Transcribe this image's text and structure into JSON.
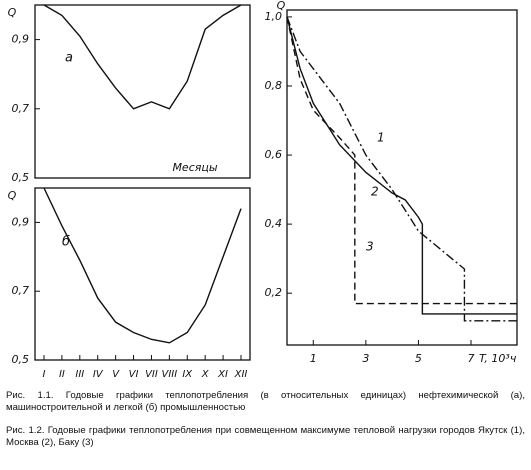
{
  "chart_data": [
    {
      "type": "line",
      "y_label": "Q",
      "panel_label": "а",
      "x_label": "Месяцы",
      "categories": [
        "I",
        "II",
        "III",
        "IV",
        "V",
        "VI",
        "VII",
        "VIII",
        "IX",
        "X",
        "XI",
        "XII"
      ],
      "values": [
        1.0,
        0.97,
        0.91,
        0.83,
        0.76,
        0.7,
        0.72,
        0.7,
        0.78,
        0.93,
        0.97,
        1.0
      ],
      "color": "#111",
      "show_categories": false,
      "ylim": [
        0.5,
        1.0
      ],
      "yticks": [
        {
          "value": 0.5,
          "label": "0,5"
        },
        {
          "value": 0.7,
          "label": "0,7"
        },
        {
          "value": 0.9,
          "label": "0,9"
        }
      ]
    },
    {
      "type": "line",
      "y_label": "Q",
      "panel_label": "б",
      "categories": [
        "I",
        "II",
        "III",
        "IV",
        "V",
        "VI",
        "VII",
        "VIII",
        "IX",
        "X",
        "XI",
        "XII"
      ],
      "values": [
        1.0,
        0.89,
        0.79,
        0.68,
        0.61,
        0.58,
        0.56,
        0.55,
        0.58,
        0.66,
        0.8,
        0.94
      ],
      "color": "#111",
      "show_categories": true,
      "ylim": [
        0.5,
        1.0
      ],
      "yticks": [
        {
          "value": 0.5,
          "label": "0,5"
        },
        {
          "value": 0.7,
          "label": "0,7"
        },
        {
          "value": 0.9,
          "label": "0,9"
        }
      ]
    },
    {
      "type": "xyline",
      "y_label": "Q",
      "x_label": "T, 10³ч",
      "xlim": [
        0,
        8.75
      ],
      "ylim": [
        0.05,
        1.02
      ],
      "xticks": [
        1,
        3,
        5,
        7
      ],
      "yticks": [
        {
          "value": 0.2,
          "label": "0,2"
        },
        {
          "value": 0.4,
          "label": "0,4"
        },
        {
          "value": 0.6,
          "label": "0,6"
        },
        {
          "value": 0.8,
          "label": "0,8"
        },
        {
          "value": 1.0,
          "label": "1,0"
        }
      ],
      "series": [
        {
          "name": "1",
          "color": "#111",
          "style": "dashdot",
          "x": [
            0,
            0.5,
            1,
            2,
            3,
            4,
            5,
            6.75,
            6.75,
            8.75
          ],
          "values": [
            1.0,
            0.9,
            0.85,
            0.75,
            0.6,
            0.5,
            0.38,
            0.27,
            0.12,
            0.12
          ]
        },
        {
          "name": "2",
          "color": "#111",
          "style": "solid",
          "x": [
            0,
            0.5,
            1,
            2,
            3,
            4,
            4.5,
            5,
            5.15,
            5.15,
            8.75
          ],
          "values": [
            1.0,
            0.85,
            0.75,
            0.63,
            0.55,
            0.49,
            0.47,
            0.42,
            0.4,
            0.14,
            0.14
          ]
        },
        {
          "name": "3",
          "color": "#111",
          "style": "dashed",
          "x": [
            0,
            0.5,
            1,
            2,
            2.58,
            2.58,
            8.75
          ],
          "values": [
            1.0,
            0.82,
            0.73,
            0.65,
            0.6,
            0.17,
            0.17
          ]
        }
      ]
    }
  ],
  "captions": [
    "Рис. 1.1. Годовые графики теплопотребления (в относительных единицах) нефтехимической (а), машиностроительной и легкой (б) промышленностью",
    "Рис. 1.2. Годовые графики теплопотребления при совмещенном максимуме тепловой нагрузки городов Якутск (1), Москва (2), Баку (3)"
  ]
}
